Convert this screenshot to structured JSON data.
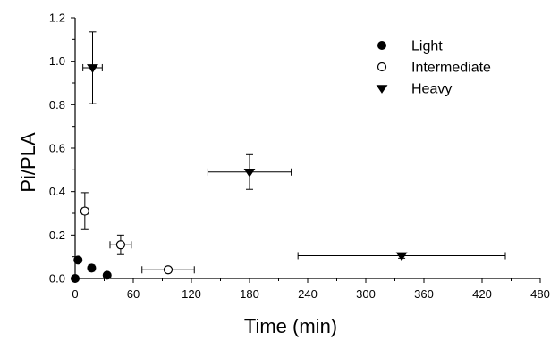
{
  "chart_data": {
    "type": "scatter",
    "title": "",
    "xlabel": "Time (min)",
    "ylabel": "Pi/PLA",
    "xlim": [
      0,
      480
    ],
    "ylim": [
      0,
      1.2
    ],
    "xticks": [
      "0",
      "60",
      "120",
      "180",
      "240",
      "300",
      "360",
      "420",
      "480"
    ],
    "yticks": [
      "0.0",
      "0.2",
      "0.4",
      "0.6",
      "0.8",
      "1.0",
      "1.2"
    ],
    "grid": false,
    "legend_position": "top-right",
    "series": [
      {
        "name": "Light",
        "marker": "filled-circle",
        "points": [
          {
            "x": 0,
            "y": 0.0,
            "xerr": 0,
            "yerr": 0
          },
          {
            "x": 3,
            "y": 0.085,
            "xerr": 2,
            "yerr": 0.01
          },
          {
            "x": 17,
            "y": 0.048,
            "xerr": 3,
            "yerr": 0.008
          },
          {
            "x": 33,
            "y": 0.015,
            "xerr": 2,
            "yerr": 0.005
          }
        ]
      },
      {
        "name": "Intermediate",
        "marker": "open-circle",
        "points": [
          {
            "x": 10,
            "y": 0.31,
            "xerr": 3,
            "yerr": 0.085
          },
          {
            "x": 47,
            "y": 0.155,
            "xerr": 11,
            "yerr": 0.045
          },
          {
            "x": 96,
            "y": 0.04,
            "xerr": 27,
            "yerr": 0.01
          }
        ]
      },
      {
        "name": "Heavy",
        "marker": "filled-triangle-down",
        "points": [
          {
            "x": 18,
            "y": 0.97,
            "xerr": 10,
            "yerr": 0.165
          },
          {
            "x": 180,
            "y": 0.49,
            "xerr": 43,
            "yerr": 0.08
          },
          {
            "x": 337,
            "y": 0.105,
            "xerr": 107,
            "yerr": 0.012
          }
        ]
      }
    ]
  }
}
